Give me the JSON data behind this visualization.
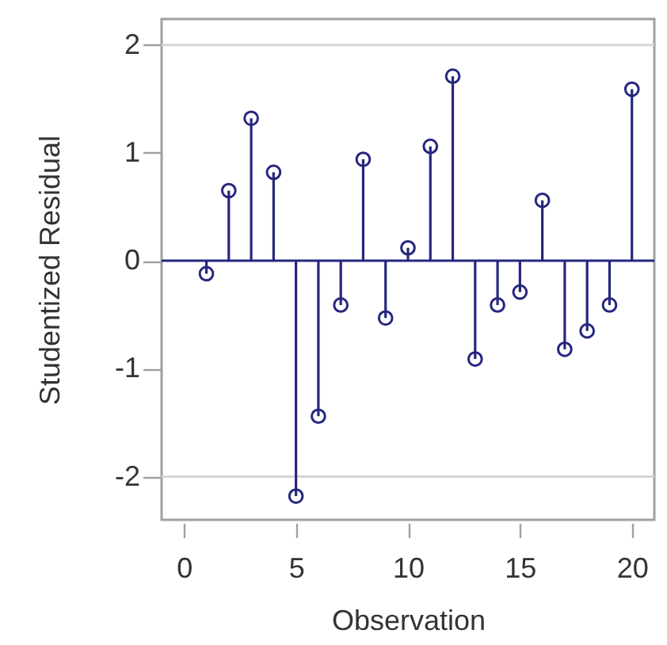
{
  "chart_data": {
    "type": "lollipop",
    "xlabel": "Observation",
    "ylabel": "Studentized Residual",
    "x": [
      1,
      2,
      3,
      4,
      5,
      6,
      7,
      8,
      9,
      10,
      11,
      12,
      13,
      14,
      15,
      16,
      17,
      18,
      19,
      20
    ],
    "values": [
      -0.12,
      0.65,
      1.32,
      0.82,
      -2.18,
      -1.44,
      -0.41,
      0.94,
      -0.53,
      0.12,
      1.06,
      1.71,
      -0.91,
      -0.41,
      -0.29,
      0.56,
      -0.82,
      -0.65,
      -0.41,
      1.59
    ],
    "color": "#262680",
    "marker": "circle",
    "xlim": [
      -1,
      21
    ],
    "ylim": [
      -2.4,
      2.24
    ],
    "xticks": [
      0,
      5,
      10,
      15,
      20
    ],
    "yticks": [
      -2,
      -1,
      0,
      1,
      2
    ],
    "ref_lines": [
      {
        "axis": "y",
        "value": 2,
        "color": "#d4d4d4"
      },
      {
        "axis": "y",
        "value": -2,
        "color": "#d4d4d4"
      },
      {
        "axis": "y",
        "value": 0,
        "color": "#262680"
      }
    ]
  }
}
